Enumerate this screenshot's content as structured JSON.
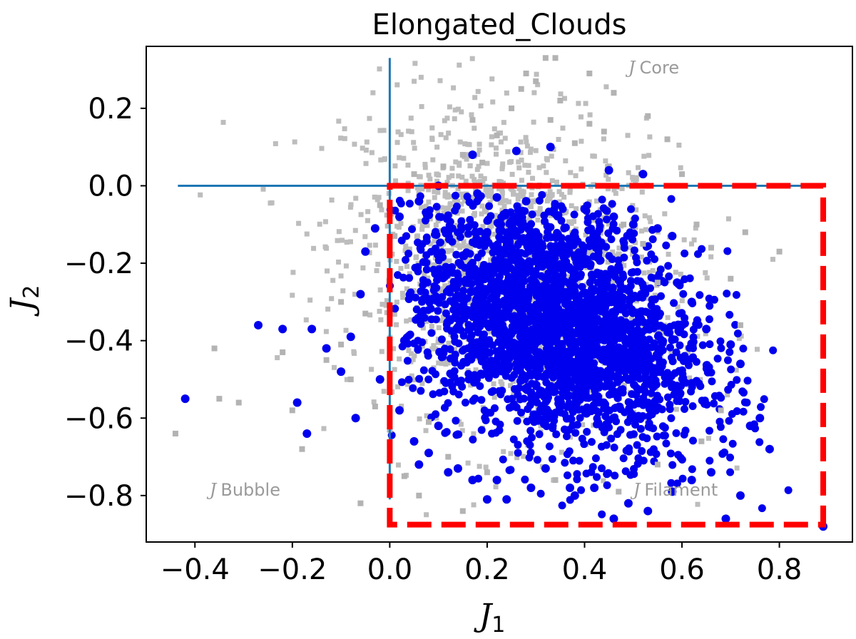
{
  "chart_data": {
    "type": "scatter",
    "title": "Elongated_Clouds",
    "xlabel": {
      "symbol": "J",
      "subscript": "1"
    },
    "ylabel": {
      "symbol": "J",
      "subscript": "2"
    },
    "xlim": [
      -0.5,
      0.95
    ],
    "ylim": [
      -0.92,
      0.36
    ],
    "xticks": [
      {
        "value": -0.4,
        "label": "−0.4"
      },
      {
        "value": -0.2,
        "label": "−0.2"
      },
      {
        "value": 0.0,
        "label": "0.0"
      },
      {
        "value": 0.2,
        "label": "0.2"
      },
      {
        "value": 0.4,
        "label": "0.4"
      },
      {
        "value": 0.6,
        "label": "0.6"
      },
      {
        "value": 0.8,
        "label": "0.8"
      }
    ],
    "yticks": [
      {
        "value": 0.2,
        "label": "0.2"
      },
      {
        "value": 0.0,
        "label": "0.0"
      },
      {
        "value": -0.2,
        "label": "−0.2"
      },
      {
        "value": -0.4,
        "label": "−0.4"
      },
      {
        "value": -0.6,
        "label": "−0.6"
      },
      {
        "value": -0.8,
        "label": "−0.8"
      }
    ],
    "grid": false,
    "series": [
      {
        "marker": "square",
        "color": "#b3b3b3",
        "points": [
          [
            -0.44,
            -0.64
          ],
          [
            -0.35,
            -0.55
          ],
          [
            -0.31,
            -0.56
          ],
          [
            -0.36,
            -0.42
          ],
          [
            -0.22,
            -0.43
          ],
          [
            -0.2,
            -0.58
          ],
          [
            -0.18,
            -0.68
          ],
          [
            -0.13,
            -0.45
          ],
          [
            -0.1,
            -0.41
          ],
          [
            -0.06,
            -0.82
          ],
          [
            -0.05,
            -0.33
          ],
          [
            0.03,
            -0.75
          ],
          [
            0.06,
            -0.8
          ],
          [
            0.15,
            -0.84
          ],
          [
            0.15,
            0.08
          ],
          [
            0.22,
            0.13
          ],
          [
            0.27,
            0.25
          ],
          [
            0.3,
            0.27
          ],
          [
            0.33,
            0.17
          ],
          [
            0.35,
            0.22
          ],
          [
            0.38,
            0.11
          ],
          [
            0.41,
            0.16
          ],
          [
            0.44,
            0.14
          ],
          [
            0.45,
            0.05
          ],
          [
            0.48,
            -0.1
          ],
          [
            0.52,
            -0.15
          ],
          [
            0.55,
            -0.25
          ],
          [
            0.57,
            0.12
          ],
          [
            0.6,
            0.03
          ],
          [
            0.63,
            -0.1
          ],
          [
            0.66,
            -0.16
          ],
          [
            0.7,
            -0.24
          ],
          [
            0.72,
            -0.36
          ],
          [
            0.73,
            -0.12
          ],
          [
            0.8,
            -0.17
          ],
          [
            0.32,
            0.33
          ],
          [
            0.34,
            0.33
          ],
          [
            0.41,
            0.29
          ],
          [
            0.25,
            0.2
          ],
          [
            0.19,
            0.06
          ],
          [
            0.11,
            0.05
          ],
          [
            0.05,
            0.03
          ],
          [
            -0.02,
            -0.05
          ],
          [
            0.01,
            -0.13
          ],
          [
            -0.1,
            -0.3
          ],
          [
            -0.08,
            -0.5
          ],
          [
            -0.03,
            -0.57
          ],
          [
            0.0,
            -0.63
          ],
          [
            0.08,
            -0.61
          ],
          [
            0.12,
            -0.7
          ],
          [
            0.2,
            -0.74
          ],
          [
            0.34,
            -0.76
          ],
          [
            0.47,
            -0.79
          ],
          [
            0.55,
            -0.72
          ],
          [
            0.64,
            -0.66
          ],
          [
            0.68,
            -0.58
          ],
          [
            0.53,
            0.18
          ],
          [
            0.46,
            0.24
          ],
          [
            0.28,
            0.29
          ],
          [
            0.17,
            0.17
          ]
        ]
      },
      {
        "marker": "circle",
        "color": "#0000ee",
        "points": [
          [
            -0.42,
            -0.55
          ],
          [
            -0.27,
            -0.36
          ],
          [
            -0.22,
            -0.37
          ],
          [
            -0.19,
            -0.56
          ],
          [
            -0.17,
            -0.64
          ],
          [
            -0.16,
            -0.37
          ],
          [
            -0.13,
            -0.42
          ],
          [
            -0.1,
            -0.48
          ],
          [
            -0.08,
            -0.39
          ],
          [
            -0.07,
            -0.6
          ],
          [
            -0.06,
            -0.28
          ],
          [
            -0.05,
            -0.17
          ],
          [
            -0.03,
            -0.11
          ],
          [
            -0.02,
            -0.5
          ],
          [
            0.02,
            -0.58
          ],
          [
            0.03,
            -0.4
          ],
          [
            0.05,
            -0.66
          ],
          [
            0.06,
            -0.72
          ],
          [
            0.08,
            -0.69
          ],
          [
            0.1,
            -0.62
          ],
          [
            0.12,
            -0.74
          ],
          [
            0.14,
            -0.73
          ],
          [
            0.17,
            -0.76
          ],
          [
            0.2,
            -0.81
          ],
          [
            0.22,
            -0.76
          ],
          [
            0.24,
            -0.81
          ],
          [
            0.29,
            -0.78
          ],
          [
            0.32,
            -0.73
          ],
          [
            0.37,
            -0.78
          ],
          [
            0.38,
            -0.8
          ],
          [
            0.42,
            -0.78
          ],
          [
            0.46,
            -0.86
          ],
          [
            0.49,
            -0.82
          ],
          [
            0.53,
            -0.84
          ],
          [
            0.58,
            -0.79
          ],
          [
            0.62,
            -0.76
          ],
          [
            0.66,
            -0.74
          ],
          [
            0.69,
            -0.86
          ],
          [
            0.72,
            -0.8
          ],
          [
            0.74,
            -0.62
          ],
          [
            0.72,
            -0.46
          ],
          [
            0.76,
            -0.6
          ],
          [
            0.78,
            -0.68
          ],
          [
            0.89,
            -0.88
          ],
          [
            0.7,
            -0.41
          ],
          [
            0.65,
            -0.37
          ],
          [
            0.62,
            -0.3
          ],
          [
            0.59,
            -0.25
          ],
          [
            0.58,
            -0.13
          ],
          [
            0.55,
            -0.11
          ],
          [
            0.52,
            0.03
          ],
          [
            0.45,
            0.04
          ],
          [
            0.33,
            0.1
          ],
          [
            0.26,
            0.09
          ],
          [
            0.17,
            0.08
          ],
          [
            0.1,
            0.0
          ],
          [
            0.06,
            -0.04
          ],
          [
            0.02,
            -0.08
          ],
          [
            0.34,
            -0.05
          ],
          [
            0.18,
            -0.02
          ],
          [
            0.22,
            -0.03
          ],
          [
            0.28,
            -0.04
          ],
          [
            0.4,
            -0.06
          ],
          [
            0.46,
            -0.08
          ],
          [
            0.5,
            -0.1
          ],
          [
            0.3,
            -0.12
          ],
          [
            0.38,
            -0.14
          ],
          [
            0.2,
            -0.12
          ],
          [
            0.12,
            -0.12
          ],
          [
            0.15,
            -0.18
          ]
        ]
      }
    ],
    "reference_lines": [
      {
        "orientation": "horizontal",
        "y": 0.0,
        "x_from": -0.435,
        "x_to": 0.885,
        "color": "#1f77b4"
      },
      {
        "orientation": "vertical",
        "x": 0.0,
        "y_from": -0.81,
        "y_to": 0.33,
        "color": "#1f77b4"
      }
    ],
    "region_box": {
      "x0": 0.0,
      "x1": 0.89,
      "y0": -0.875,
      "y1": 0.0,
      "color": "#ff0000",
      "style": "dashed"
    },
    "annotations": [
      {
        "id": "core",
        "symbol": "J",
        "text": "Core",
        "x": 0.49,
        "y": 0.29
      },
      {
        "id": "bubble",
        "symbol": "J",
        "text": "Bubble",
        "x": -0.37,
        "y": -0.8
      },
      {
        "id": "filament",
        "symbol": "J",
        "text": "Filament",
        "x": 0.5,
        "y": -0.8
      }
    ]
  }
}
